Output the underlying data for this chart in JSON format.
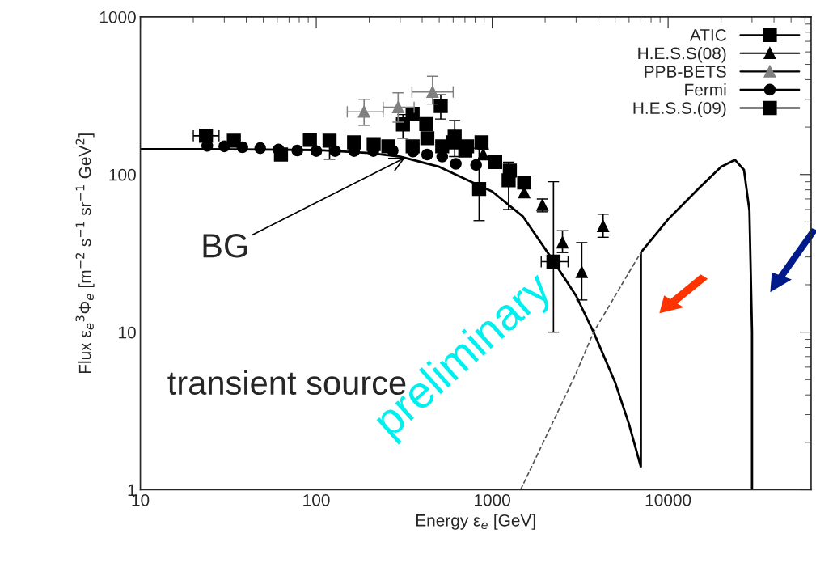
{
  "chart_data": {
    "type": "scatter",
    "xlabel": "Energy ε$_{e}$ [GeV]",
    "ylabel": "Flux ε$_{e}$$^{3}$Φ$_{e}$ [m$^{−2}$ s$^{−1}$ sr$^{−1}$ GeV$^{2}$]",
    "log": "xy",
    "xlim": [
      10,
      65000
    ],
    "ylim": [
      1,
      1000
    ],
    "xticks": [
      10,
      100,
      1000,
      10000
    ],
    "yticks": [
      1,
      10,
      100,
      1000
    ],
    "legend": "top right",
    "grid": false,
    "series": [
      {
        "type": "line",
        "line_style": "solid",
        "color": "#000000",
        "x": [
          10,
          20,
          50,
          100,
          200,
          300,
          500,
          743,
          1000,
          1500,
          2150,
          3000,
          3770,
          5000,
          6000,
          7000,
          7000,
          10000,
          15000,
          20000,
          24000,
          27000,
          29000,
          30000,
          30000
        ],
        "values": [
          145,
          145,
          144,
          143,
          137,
          130,
          112,
          91,
          78,
          54,
          30,
          17,
          10,
          4.8,
          2.6,
          1.4,
          32,
          52,
          82,
          112,
          124,
          107,
          59,
          10,
          1
        ]
      },
      {
        "type": "line",
        "line_style": "dashed",
        "color": "#555555",
        "x": [
          1450,
          2220,
          3000,
          3770,
          5000,
          6000,
          7000
        ],
        "values": [
          1,
          2.7,
          5.5,
          10,
          17,
          24,
          32
        ]
      },
      {
        "name": "ATIC",
        "marker": "square",
        "color": "#000000",
        "x": [
          23.6,
          34,
          63,
          92,
          119,
          164,
          212,
          257,
          311,
          353,
          422,
          510,
          612,
          703,
          843,
          1240,
          2230
        ],
        "values": [
          176,
          164,
          134,
          166,
          164,
          160,
          156,
          151,
          208,
          243,
          209,
          272,
          174,
          142,
          81,
          92,
          28
        ],
        "errors": [
          null,
          null,
          null,
          null,
          [
            125,
            165
          ],
          null,
          null,
          null,
          [
            170,
            240
          ],
          null,
          null,
          [
            225,
            320
          ],
          [
            130,
            220
          ],
          null,
          [
            51,
            147
          ],
          [
            60,
            120
          ],
          [
            10,
            90
          ]
        ],
        "xerrors": [
          [
            20,
            28
          ],
          null,
          null,
          null,
          null,
          null,
          null,
          null,
          null,
          null,
          null,
          null,
          null,
          null,
          null,
          null,
          [
            1900,
            2700
          ]
        ]
      },
      {
        "name": "H.E.S.S(08)",
        "marker": "triangle",
        "color": "#000000",
        "x": [
          890,
          1520,
          1930,
          2510,
          3230,
          4270
        ],
        "values": [
          134,
          77,
          64,
          37,
          24,
          47
        ],
        "errors": [
          [
            125,
            145
          ],
          null,
          [
            58,
            70
          ],
          [
            32,
            44
          ],
          [
            16,
            37
          ],
          [
            40,
            56
          ]
        ]
      },
      {
        "name": "PPB-BETS",
        "marker": "triangle",
        "color": "#808080",
        "x": [
          187,
          292,
          458
        ],
        "values": [
          250,
          267,
          334
        ],
        "errors": [
          [
            205,
            300
          ],
          [
            215,
            330
          ],
          [
            280,
            420
          ]
        ],
        "xerrors": [
          [
            150,
            240
          ],
          [
            240,
            360
          ],
          [
            350,
            600
          ]
        ]
      },
      {
        "name": "Fermi",
        "marker": "circle",
        "color": "#000000",
        "x": [
          24,
          30,
          38,
          48,
          61,
          78,
          100,
          128,
          164,
          211,
          272,
          355,
          427,
          520,
          621,
          810
        ],
        "values": [
          152,
          151,
          149,
          147,
          144,
          142,
          141,
          141,
          141,
          141,
          142,
          140,
          134,
          130,
          117,
          115
        ]
      },
      {
        "name": "H.E.S.S.(09)",
        "marker": "square",
        "color": "#000000",
        "x": [
          353,
          428,
          520,
          600,
          720,
          870,
          1040,
          1260,
          1520
        ],
        "values": [
          151,
          170,
          151,
          160,
          151,
          160,
          120,
          106,
          89
        ]
      }
    ],
    "annotations": [
      {
        "text": "BG",
        "x": 320,
        "y": 128
      },
      "transient source",
      "preliminary"
    ]
  }
}
